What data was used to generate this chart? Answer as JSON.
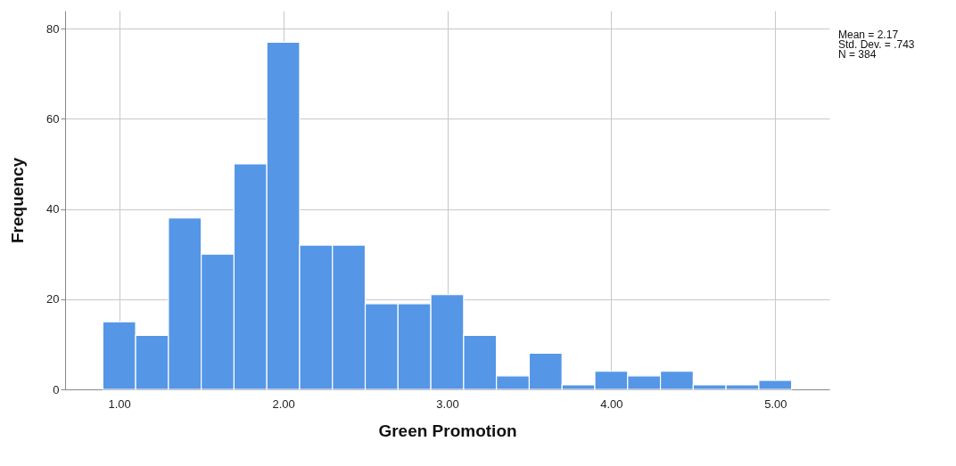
{
  "chart_data": {
    "type": "histogram",
    "xlabel": "Green Promotion",
    "ylabel": "Frequency",
    "bins": [
      0.9,
      1.1,
      1.3,
      1.5,
      1.7,
      1.9,
      2.1,
      2.3,
      2.5,
      2.7,
      2.9,
      3.1,
      3.3,
      3.5,
      3.7,
      3.9,
      4.1,
      4.3,
      4.5,
      4.7,
      4.9,
      5.1
    ],
    "values": [
      15,
      12,
      38,
      30,
      50,
      77,
      32,
      32,
      19,
      19,
      21,
      12,
      3,
      8,
      1,
      4,
      3,
      4,
      1,
      1,
      2
    ],
    "color": "#5596e6",
    "xlim": [
      0.67,
      5.33
    ],
    "ylim": [
      0,
      84
    ],
    "xticks": [
      {
        "value": 1,
        "label": "1.00"
      },
      {
        "value": 2,
        "label": "2.00"
      },
      {
        "value": 3,
        "label": "3.00"
      },
      {
        "value": 4,
        "label": "4.00"
      },
      {
        "value": 5,
        "label": "5.00"
      }
    ],
    "yticks": [
      0,
      20,
      40,
      60,
      80
    ],
    "grid": true,
    "annotations": [
      "Mean = 2.17",
      "Std. Dev. = .743",
      "N = 384"
    ]
  }
}
